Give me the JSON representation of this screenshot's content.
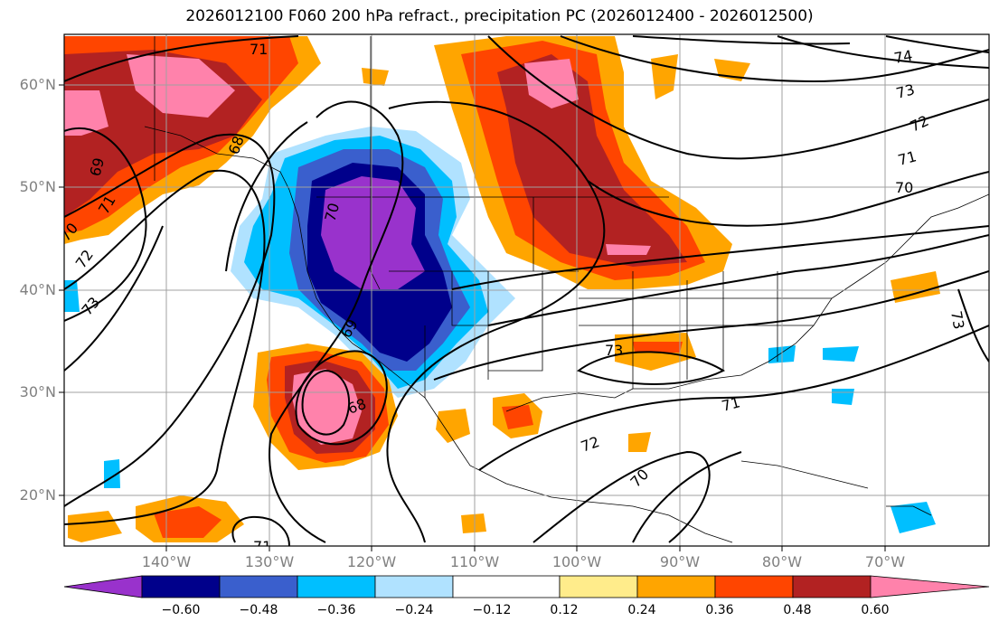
{
  "title": "2026012100 F060 200 hPa refract., precipitation PC (2026012400 - 2026012500)",
  "lat_labels": [
    "60°N",
    "50°N",
    "40°N",
    "30°N",
    "20°N"
  ],
  "lon_labels": [
    "140°W",
    "130°W",
    "120°W",
    "110°W",
    "100°W",
    "90°W",
    "80°W",
    "70°W"
  ],
  "contour_labels": [
    "71",
    "69",
    "71",
    "70",
    "72",
    "73",
    "70",
    "68",
    "69",
    "68",
    "73",
    "71",
    "72",
    "70",
    "71",
    "74",
    "73",
    "72",
    "71",
    "70",
    "73"
  ],
  "colorbar": {
    "labels": [
      "−0.60",
      "−0.48",
      "−0.36",
      "−0.24",
      "−0.12",
      "0.12",
      "0.24",
      "0.36",
      "0.48",
      "0.60"
    ],
    "colors": [
      "#9932cc",
      "#00008b",
      "#3a5fcd",
      "#00bfff",
      "#b0e2ff",
      "#ffffff",
      "#ffec8b",
      "#ffa500",
      "#ff4500",
      "#b22222",
      "#ff82ab"
    ]
  }
}
